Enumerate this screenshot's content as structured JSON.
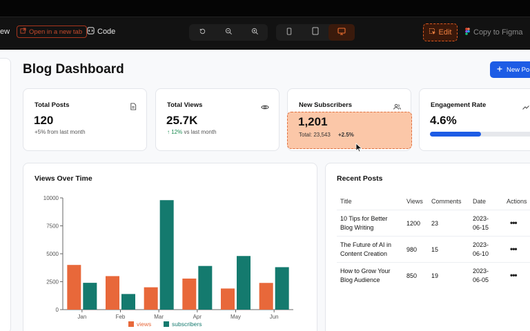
{
  "toolbar": {
    "view_label": "ew",
    "open_label": "Open in a new tab",
    "code_label": "Code",
    "edit_label": "Edit",
    "figma_label": "Copy to Figma",
    "accent": "#e05a20"
  },
  "page": {
    "title": "Blog Dashboard",
    "new_post_label": "New Po"
  },
  "stats": [
    {
      "label": "Total Posts",
      "value": "120",
      "sub": "+5% from last month",
      "icon": "document-icon"
    },
    {
      "label": "Total Views",
      "value": "25.7K",
      "sub_arrow": "↑",
      "sub_pct": "12%",
      "sub": "vs last month",
      "icon": "eye-icon"
    },
    {
      "label": "New Subscribers",
      "value": "1,201",
      "total": "Total: 23,543",
      "change": "+2.5%",
      "icon": "users-icon"
    },
    {
      "label": "Engagement Rate",
      "value": "4.6%",
      "progress": 0.46,
      "icon": "trend-icon"
    }
  ],
  "chart_card": {
    "title": "Views Over Time"
  },
  "chart_data": {
    "type": "bar",
    "categories": [
      "Jan",
      "Feb",
      "Mar",
      "Apr",
      "May",
      "Jun"
    ],
    "series": [
      {
        "name": "views",
        "values": [
          4000,
          3000,
          2000,
          2780,
          1890,
          2390
        ],
        "color": "#e8683a"
      },
      {
        "name": "subscribers",
        "values": [
          2400,
          1398,
          9800,
          3908,
          4800,
          3800
        ],
        "color": "#147a6e"
      }
    ],
    "ylim": [
      0,
      10000
    ],
    "yticks": [
      "0",
      "2500",
      "5000",
      "7500",
      "10000"
    ],
    "legend": "bottom-center",
    "grid": false
  },
  "recent_posts": {
    "title": "Recent Posts",
    "columns": [
      "Title",
      "Views",
      "Comments",
      "Date",
      "Actions"
    ],
    "rows": [
      {
        "title1": "10 Tips for Better",
        "title2": "Blog Writing",
        "views": "1200",
        "comments": "23",
        "date1": "2023-",
        "date2": "06-15",
        "action": "•••"
      },
      {
        "title1": "The Future of AI in",
        "title2": "Content Creation",
        "views": "980",
        "comments": "15",
        "date1": "2023-",
        "date2": "06-10",
        "action": "•••"
      },
      {
        "title1": "How to Grow Your",
        "title2": "Blog Audience",
        "views": "850",
        "comments": "19",
        "date1": "2023-",
        "date2": "06-05",
        "action": "•••"
      }
    ]
  }
}
